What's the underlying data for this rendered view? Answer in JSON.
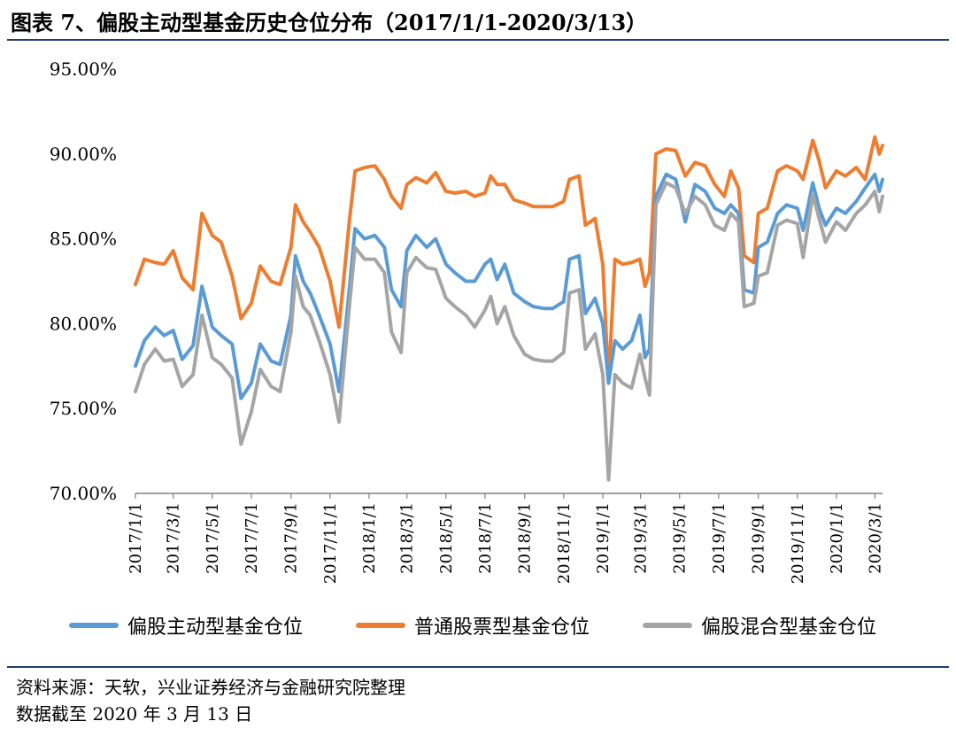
{
  "header": {
    "title": "图表 7、偏股主动型基金历史仓位分布（2017/1/1-2020/3/13）"
  },
  "footer": {
    "source": "资料来源：天软，兴业证券经济与金融研究院整理",
    "date_note": "数据截至 2020 年 3 月 13 日"
  },
  "colors": {
    "rule": "#1f3b73",
    "series": [
      "#5b9bd5",
      "#ed7d31",
      "#a5a5a5"
    ]
  },
  "chart_data": {
    "type": "line",
    "title": "",
    "xlabel": "",
    "ylabel": "",
    "ylim": [
      70,
      95
    ],
    "y_tick_values": [
      70,
      75,
      80,
      85,
      90,
      95
    ],
    "y_tick_labels": [
      "70.00%",
      "75.00%",
      "80.00%",
      "85.00%",
      "90.00%",
      "95.00%"
    ],
    "x_tick_labels": [
      "2017/1/1",
      "2017/3/1",
      "2017/5/1",
      "2017/7/1",
      "2017/9/1",
      "2017/11/1",
      "2018/1/1",
      "2018/3/1",
      "2018/5/1",
      "2018/7/1",
      "2018/9/1",
      "2018/11/1",
      "2019/1/1",
      "2019/3/1",
      "2019/5/1",
      "2019/7/1",
      "2019/9/1",
      "2019/11/1",
      "2020/1/1",
      "2020/3/1"
    ],
    "x_start": "2017/1/1",
    "x_end": "2020/3/13",
    "grid": false,
    "legend_position": "bottom",
    "series": [
      {
        "name": "偏股主动型基金仓位",
        "points": [
          [
            "2017/1/1",
            77.5
          ],
          [
            "2017/1/15",
            79.0
          ],
          [
            "2017/2/1",
            79.8
          ],
          [
            "2017/2/15",
            79.3
          ],
          [
            "2017/3/1",
            79.6
          ],
          [
            "2017/3/15",
            77.9
          ],
          [
            "2017/4/1",
            78.7
          ],
          [
            "2017/4/15",
            82.2
          ],
          [
            "2017/5/1",
            79.8
          ],
          [
            "2017/5/15",
            79.3
          ],
          [
            "2017/6/1",
            78.8
          ],
          [
            "2017/6/15",
            75.6
          ],
          [
            "2017/7/1",
            76.5
          ],
          [
            "2017/7/15",
            78.8
          ],
          [
            "2017/8/1",
            77.8
          ],
          [
            "2017/8/15",
            77.6
          ],
          [
            "2017/9/1",
            80.5
          ],
          [
            "2017/9/8",
            84.0
          ],
          [
            "2017/9/20",
            82.5
          ],
          [
            "2017/10/1",
            81.8
          ],
          [
            "2017/10/15",
            80.5
          ],
          [
            "2017/11/1",
            78.8
          ],
          [
            "2017/11/15",
            76.0
          ],
          [
            "2017/12/1",
            82.0
          ],
          [
            "2017/12/10",
            85.6
          ],
          [
            "2017/12/25",
            85.0
          ],
          [
            "2018/1/10",
            85.2
          ],
          [
            "2018/1/25",
            84.5
          ],
          [
            "2018/2/5",
            82.0
          ],
          [
            "2018/2/20",
            81.0
          ],
          [
            "2018/3/1",
            84.3
          ],
          [
            "2018/3/15",
            85.2
          ],
          [
            "2018/4/1",
            84.5
          ],
          [
            "2018/4/15",
            85.0
          ],
          [
            "2018/5/1",
            83.5
          ],
          [
            "2018/5/15",
            83.0
          ],
          [
            "2018/6/1",
            82.5
          ],
          [
            "2018/6/15",
            82.5
          ],
          [
            "2018/7/1",
            83.5
          ],
          [
            "2018/7/10",
            83.8
          ],
          [
            "2018/7/20",
            82.6
          ],
          [
            "2018/8/1",
            83.5
          ],
          [
            "2018/8/15",
            81.8
          ],
          [
            "2018/9/1",
            81.3
          ],
          [
            "2018/9/15",
            81.0
          ],
          [
            "2018/10/1",
            80.9
          ],
          [
            "2018/10/15",
            80.9
          ],
          [
            "2018/11/1",
            81.3
          ],
          [
            "2018/11/10",
            83.8
          ],
          [
            "2018/11/25",
            84.0
          ],
          [
            "2018/12/5",
            80.6
          ],
          [
            "2018/12/20",
            81.5
          ],
          [
            "2019/1/1",
            80.0
          ],
          [
            "2019/1/10",
            76.5
          ],
          [
            "2019/1/20",
            79.0
          ],
          [
            "2019/2/1",
            78.5
          ],
          [
            "2019/2/15",
            79.0
          ],
          [
            "2019/2/28",
            80.5
          ],
          [
            "2019/3/8",
            78.0
          ],
          [
            "2019/3/15",
            78.5
          ],
          [
            "2019/3/25",
            87.5
          ],
          [
            "2019/4/10",
            88.8
          ],
          [
            "2019/4/25",
            88.5
          ],
          [
            "2019/5/10",
            86.0
          ],
          [
            "2019/5/25",
            88.2
          ],
          [
            "2019/6/10",
            87.8
          ],
          [
            "2019/6/25",
            86.8
          ],
          [
            "2019/7/10",
            86.5
          ],
          [
            "2019/7/20",
            87.0
          ],
          [
            "2019/8/1",
            86.5
          ],
          [
            "2019/8/10",
            82.0
          ],
          [
            "2019/8/25",
            81.8
          ],
          [
            "2019/9/1",
            84.5
          ],
          [
            "2019/9/15",
            84.8
          ],
          [
            "2019/10/1",
            86.5
          ],
          [
            "2019/10/15",
            87.0
          ],
          [
            "2019/11/1",
            86.8
          ],
          [
            "2019/11/10",
            85.5
          ],
          [
            "2019/11/25",
            88.3
          ],
          [
            "2019/12/5",
            86.8
          ],
          [
            "2019/12/15",
            85.8
          ],
          [
            "2020/1/1",
            86.8
          ],
          [
            "2020/1/15",
            86.5
          ],
          [
            "2020/2/1",
            87.2
          ],
          [
            "2020/2/15",
            88.0
          ],
          [
            "2020/3/1",
            88.8
          ],
          [
            "2020/3/8",
            87.8
          ],
          [
            "2020/3/13",
            88.5
          ]
        ]
      },
      {
        "name": "普通股票型基金仓位",
        "points": [
          [
            "2017/1/1",
            82.3
          ],
          [
            "2017/1/15",
            83.8
          ],
          [
            "2017/2/1",
            83.6
          ],
          [
            "2017/2/15",
            83.5
          ],
          [
            "2017/3/1",
            84.3
          ],
          [
            "2017/3/15",
            82.7
          ],
          [
            "2017/4/1",
            82.0
          ],
          [
            "2017/4/15",
            86.5
          ],
          [
            "2017/5/1",
            85.2
          ],
          [
            "2017/5/15",
            84.8
          ],
          [
            "2017/6/1",
            82.8
          ],
          [
            "2017/6/15",
            80.3
          ],
          [
            "2017/7/1",
            81.2
          ],
          [
            "2017/7/15",
            83.4
          ],
          [
            "2017/8/1",
            82.5
          ],
          [
            "2017/8/15",
            82.3
          ],
          [
            "2017/9/1",
            84.5
          ],
          [
            "2017/9/8",
            87.0
          ],
          [
            "2017/9/20",
            86.0
          ],
          [
            "2017/10/1",
            85.4
          ],
          [
            "2017/10/15",
            84.5
          ],
          [
            "2017/11/1",
            82.5
          ],
          [
            "2017/11/15",
            79.8
          ],
          [
            "2017/12/1",
            86.0
          ],
          [
            "2017/12/10",
            89.0
          ],
          [
            "2017/12/25",
            89.2
          ],
          [
            "2018/1/10",
            89.3
          ],
          [
            "2018/1/25",
            88.5
          ],
          [
            "2018/2/5",
            87.5
          ],
          [
            "2018/2/20",
            86.8
          ],
          [
            "2018/3/1",
            88.2
          ],
          [
            "2018/3/15",
            88.6
          ],
          [
            "2018/4/1",
            88.3
          ],
          [
            "2018/4/15",
            88.9
          ],
          [
            "2018/5/1",
            87.8
          ],
          [
            "2018/5/15",
            87.7
          ],
          [
            "2018/6/1",
            87.8
          ],
          [
            "2018/6/15",
            87.5
          ],
          [
            "2018/7/1",
            87.7
          ],
          [
            "2018/7/10",
            88.7
          ],
          [
            "2018/7/20",
            88.2
          ],
          [
            "2018/8/1",
            88.2
          ],
          [
            "2018/8/15",
            87.3
          ],
          [
            "2018/9/1",
            87.1
          ],
          [
            "2018/9/15",
            86.9
          ],
          [
            "2018/10/1",
            86.9
          ],
          [
            "2018/10/15",
            86.9
          ],
          [
            "2018/11/1",
            87.2
          ],
          [
            "2018/11/10",
            88.5
          ],
          [
            "2018/11/25",
            88.7
          ],
          [
            "2018/12/5",
            85.8
          ],
          [
            "2018/12/20",
            86.2
          ],
          [
            "2019/1/1",
            83.5
          ],
          [
            "2019/1/10",
            76.5
          ],
          [
            "2019/1/20",
            83.8
          ],
          [
            "2019/2/1",
            83.5
          ],
          [
            "2019/2/15",
            83.6
          ],
          [
            "2019/2/28",
            83.8
          ],
          [
            "2019/3/8",
            82.2
          ],
          [
            "2019/3/15",
            83.0
          ],
          [
            "2019/3/25",
            90.0
          ],
          [
            "2019/4/10",
            90.3
          ],
          [
            "2019/4/25",
            90.2
          ],
          [
            "2019/5/10",
            88.7
          ],
          [
            "2019/5/25",
            89.5
          ],
          [
            "2019/6/10",
            89.3
          ],
          [
            "2019/6/25",
            88.2
          ],
          [
            "2019/7/10",
            87.5
          ],
          [
            "2019/7/20",
            89.0
          ],
          [
            "2019/8/1",
            88.0
          ],
          [
            "2019/8/10",
            84.0
          ],
          [
            "2019/8/25",
            83.6
          ],
          [
            "2019/9/1",
            86.5
          ],
          [
            "2019/9/15",
            86.8
          ],
          [
            "2019/10/1",
            89.0
          ],
          [
            "2019/10/15",
            89.3
          ],
          [
            "2019/11/1",
            89.0
          ],
          [
            "2019/11/10",
            88.5
          ],
          [
            "2019/11/25",
            90.8
          ],
          [
            "2019/12/5",
            89.6
          ],
          [
            "2019/12/15",
            88.0
          ],
          [
            "2020/1/1",
            89.0
          ],
          [
            "2020/1/15",
            88.7
          ],
          [
            "2020/2/1",
            89.2
          ],
          [
            "2020/2/15",
            88.5
          ],
          [
            "2020/3/1",
            91.0
          ],
          [
            "2020/3/8",
            90.0
          ],
          [
            "2020/3/13",
            90.5
          ]
        ]
      },
      {
        "name": "偏股混合型基金仓位",
        "points": [
          [
            "2017/1/1",
            76.0
          ],
          [
            "2017/1/15",
            77.6
          ],
          [
            "2017/2/1",
            78.5
          ],
          [
            "2017/2/15",
            77.8
          ],
          [
            "2017/3/1",
            77.9
          ],
          [
            "2017/3/15",
            76.3
          ],
          [
            "2017/4/1",
            77.0
          ],
          [
            "2017/4/15",
            80.5
          ],
          [
            "2017/5/1",
            78.0
          ],
          [
            "2017/5/15",
            77.6
          ],
          [
            "2017/6/1",
            76.8
          ],
          [
            "2017/6/15",
            72.9
          ],
          [
            "2017/7/1",
            74.8
          ],
          [
            "2017/7/15",
            77.3
          ],
          [
            "2017/8/1",
            76.3
          ],
          [
            "2017/8/15",
            76.0
          ],
          [
            "2017/9/1",
            79.5
          ],
          [
            "2017/9/8",
            82.8
          ],
          [
            "2017/9/20",
            81.0
          ],
          [
            "2017/10/1",
            80.5
          ],
          [
            "2017/10/15",
            79.0
          ],
          [
            "2017/11/1",
            77.0
          ],
          [
            "2017/11/15",
            74.2
          ],
          [
            "2017/12/1",
            81.0
          ],
          [
            "2017/12/10",
            84.5
          ],
          [
            "2017/12/25",
            83.8
          ],
          [
            "2018/1/10",
            83.8
          ],
          [
            "2018/1/25",
            83.0
          ],
          [
            "2018/2/5",
            79.5
          ],
          [
            "2018/2/20",
            78.3
          ],
          [
            "2018/3/1",
            83.0
          ],
          [
            "2018/3/15",
            83.9
          ],
          [
            "2018/4/1",
            83.3
          ],
          [
            "2018/4/15",
            83.2
          ],
          [
            "2018/5/1",
            81.5
          ],
          [
            "2018/5/15",
            81.0
          ],
          [
            "2018/6/1",
            80.5
          ],
          [
            "2018/6/15",
            79.8
          ],
          [
            "2018/7/1",
            80.8
          ],
          [
            "2018/7/10",
            81.6
          ],
          [
            "2018/7/20",
            80.0
          ],
          [
            "2018/8/1",
            81.0
          ],
          [
            "2018/8/15",
            79.3
          ],
          [
            "2018/9/1",
            78.2
          ],
          [
            "2018/9/15",
            77.9
          ],
          [
            "2018/10/1",
            77.8
          ],
          [
            "2018/10/15",
            77.8
          ],
          [
            "2018/11/1",
            78.3
          ],
          [
            "2018/11/10",
            81.8
          ],
          [
            "2018/11/25",
            82.0
          ],
          [
            "2018/12/5",
            78.5
          ],
          [
            "2018/12/20",
            79.4
          ],
          [
            "2019/1/1",
            77.0
          ],
          [
            "2019/1/10",
            70.8
          ],
          [
            "2019/1/20",
            77.0
          ],
          [
            "2019/2/1",
            76.5
          ],
          [
            "2019/2/15",
            76.2
          ],
          [
            "2019/2/28",
            78.2
          ],
          [
            "2019/3/8",
            76.8
          ],
          [
            "2019/3/15",
            75.8
          ],
          [
            "2019/3/25",
            87.0
          ],
          [
            "2019/4/10",
            88.3
          ],
          [
            "2019/4/25",
            88.0
          ],
          [
            "2019/5/10",
            86.5
          ],
          [
            "2019/5/25",
            87.5
          ],
          [
            "2019/6/10",
            87.0
          ],
          [
            "2019/6/25",
            85.8
          ],
          [
            "2019/7/10",
            85.5
          ],
          [
            "2019/7/20",
            86.5
          ],
          [
            "2019/8/1",
            86.0
          ],
          [
            "2019/8/10",
            81.0
          ],
          [
            "2019/8/25",
            81.2
          ],
          [
            "2019/9/1",
            82.8
          ],
          [
            "2019/9/15",
            83.0
          ],
          [
            "2019/10/1",
            85.8
          ],
          [
            "2019/10/15",
            86.1
          ],
          [
            "2019/11/1",
            85.9
          ],
          [
            "2019/11/10",
            83.9
          ],
          [
            "2019/11/25",
            87.6
          ],
          [
            "2019/12/5",
            86.2
          ],
          [
            "2019/12/15",
            84.8
          ],
          [
            "2020/1/1",
            86.0
          ],
          [
            "2020/1/15",
            85.5
          ],
          [
            "2020/2/1",
            86.5
          ],
          [
            "2020/2/15",
            87.0
          ],
          [
            "2020/3/1",
            87.8
          ],
          [
            "2020/3/8",
            86.6
          ],
          [
            "2020/3/13",
            87.5
          ]
        ]
      }
    ]
  }
}
